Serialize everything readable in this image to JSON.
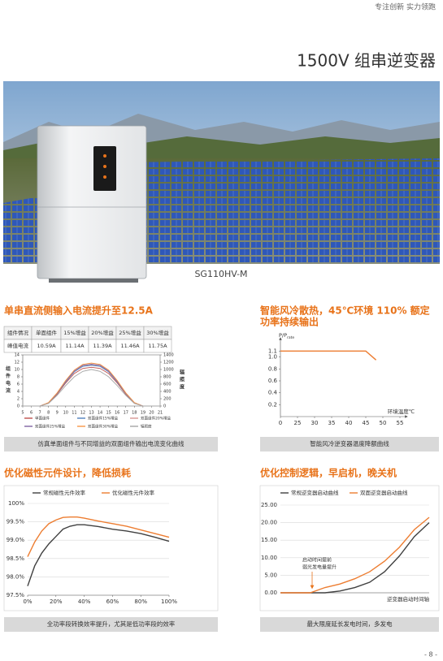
{
  "header": {
    "tagline": "专注创新 实力领跑",
    "title": "1500V 组串逆变器",
    "model": "SG110HV-M"
  },
  "sections": [
    {
      "heading": "单串直流侧输入电流提升至12.5A",
      "table": {
        "rows": [
          [
            "组件情况",
            "单面组件",
            "15%增益",
            "20%增益",
            "25%增益",
            "30%增益"
          ],
          [
            "峰值电流",
            "10.59A",
            "11.14A",
            "11.39A",
            "11.46A",
            "11.75A"
          ]
        ]
      },
      "chart": {
        "type": "line",
        "x": [
          5,
          6,
          7,
          8,
          9,
          10,
          11,
          12,
          13,
          14,
          15,
          16,
          17,
          18,
          19,
          20,
          21
        ],
        "xlim": [
          5,
          21
        ],
        "xticks": [
          5,
          6,
          7,
          8,
          9,
          10,
          11,
          12,
          13,
          14,
          15,
          16,
          17,
          18,
          19,
          20,
          21
        ],
        "ylim": [
          0,
          14
        ],
        "yticks": [
          0,
          2,
          4,
          6,
          8,
          10,
          12,
          14
        ],
        "y2lim": [
          0,
          1400
        ],
        "y2ticks": [
          0,
          200,
          400,
          600,
          800,
          1000,
          1200,
          1400
        ],
        "ylabel": "组件电流",
        "y2label": "辐照度",
        "grid": false,
        "series": [
          {
            "name": "单面组件",
            "color": "#c0504d",
            "values": [
              0,
              0,
              0,
              0.8,
              3.2,
              6.3,
              8.9,
              10.3,
              10.59,
              10.3,
              8.9,
              6.3,
              3.2,
              0.8,
              0,
              0,
              0
            ]
          },
          {
            "name": "双面组件15%增益",
            "color": "#4f81bd",
            "values": [
              0,
              0,
              0,
              0.85,
              3.4,
              6.6,
              9.35,
              10.85,
              11.14,
              10.85,
              9.35,
              6.6,
              3.4,
              0.85,
              0,
              0,
              0
            ]
          },
          {
            "name": "双面组件20%增益",
            "color": "#d99694",
            "values": [
              0,
              0,
              0,
              0.9,
              3.5,
              6.8,
              9.55,
              11.1,
              11.39,
              11.1,
              9.55,
              6.8,
              3.5,
              0.9,
              0,
              0,
              0
            ]
          },
          {
            "name": "双面组件25%增益",
            "color": "#8064a2",
            "values": [
              0,
              0,
              0,
              0.9,
              3.55,
              6.85,
              9.6,
              11.15,
              11.46,
              11.15,
              9.6,
              6.85,
              3.55,
              0.9,
              0,
              0,
              0
            ]
          },
          {
            "name": "双面组件30%增益",
            "color": "#f79646",
            "values": [
              0,
              0,
              0,
              0.95,
              3.6,
              7,
              9.85,
              11.4,
              11.75,
              11.4,
              9.85,
              7,
              3.6,
              0.95,
              0,
              0,
              0
            ]
          },
          {
            "name": "辐照度",
            "color": "#a6a6a6",
            "axis": "y2",
            "values": [
              0,
              0,
              0,
              70,
              290,
              560,
              800,
              950,
              1000,
              950,
              800,
              560,
              290,
              70,
              0,
              0,
              0
            ]
          }
        ]
      },
      "caption": "仿真单面组件与不同增益的双面组件输出电流变化曲线"
    },
    {
      "heading": [
        "智能风冷散热，45℃环境 110% 额定",
        "功率持续输出"
      ],
      "chart": {
        "type": "line",
        "x": [
          0,
          45,
          48
        ],
        "xlim": [
          0,
          55
        ],
        "xticks": [
          0,
          25,
          30,
          35,
          40,
          45,
          50,
          55
        ],
        "ylim": [
          0,
          1.2
        ],
        "yticks": [
          0.2,
          0.4,
          0.6,
          0.8,
          {
            "value": 1,
            "label": "1.0"
          },
          1.1
        ],
        "ylabel": "P/P",
        "ylabel_sub": "rate",
        "xlabel": "环境温度℃",
        "grid": false,
        "series": [
          {
            "color": "#ed7d31",
            "values": [
              1.1,
              1.1,
              0.95
            ]
          }
        ]
      },
      "caption": "智能风冷逆变器温度降额曲线"
    },
    {
      "heading": "优化磁性元件设计，降低损耗",
      "chart": {
        "type": "line",
        "x": [
          0,
          5,
          10,
          15,
          20,
          25,
          30,
          35,
          40,
          50,
          60,
          70,
          80,
          90,
          100
        ],
        "xlim": [
          0,
          100
        ],
        "xticks": [
          {
            "value": 0,
            "label": "0%"
          },
          {
            "value": 20,
            "label": "20%"
          },
          {
            "value": 40,
            "label": "40%"
          },
          {
            "value": 60,
            "label": "60%"
          },
          {
            "value": 80,
            "label": "80%"
          },
          {
            "value": 100,
            "label": "100%"
          }
        ],
        "ylim": [
          97.5,
          100
        ],
        "yticks": [
          {
            "value": 97.5,
            "label": "97.5%"
          },
          {
            "value": 98,
            "label": "98.0%"
          },
          {
            "value": 98.5,
            "label": "98.5%"
          },
          {
            "value": 99,
            "label": "99.0%"
          },
          {
            "value": 99.5,
            "label": "99.5%"
          },
          {
            "value": 100,
            "label": "100%"
          }
        ],
        "grid": true,
        "series": [
          {
            "name": "常规磁性元件效率",
            "color": "#404040",
            "values": [
              97.75,
              98.3,
              98.65,
              98.9,
              99.1,
              99.3,
              99.38,
              99.42,
              99.42,
              99.37,
              99.3,
              99.25,
              99.18,
              99.08,
              98.97
            ]
          },
          {
            "name": "优化磁性元件效率",
            "color": "#ed7d31",
            "values": [
              98.55,
              98.95,
              99.25,
              99.45,
              99.55,
              99.62,
              99.63,
              99.63,
              99.6,
              99.52,
              99.45,
              99.38,
              99.28,
              99.18,
              99.08
            ]
          }
        ]
      },
      "caption": "全功率段转换效率提升，尤其是低功率段的效率"
    },
    {
      "heading": "优化控制逻辑，早启机，晚关机",
      "chart": {
        "type": "line",
        "x": [
          0,
          1,
          2,
          3,
          4,
          5,
          6,
          7,
          8,
          9,
          10
        ],
        "xlim": [
          0,
          10
        ],
        "ylim": [
          0,
          25
        ],
        "yticks": [
          {
            "value": 0,
            "label": "0.00"
          },
          {
            "value": 5,
            "label": "5.00"
          },
          {
            "value": 10,
            "label": "10.00"
          },
          {
            "value": 15,
            "label": "15.00"
          },
          {
            "value": 20,
            "label": "20.00"
          },
          {
            "value": 25,
            "label": "25.00"
          }
        ],
        "xlabel": "逆变器启动时间轴",
        "grid": true,
        "annotations": [
          "启动时间提前",
          "弱光发电量提升"
        ],
        "series": [
          {
            "name": "常规逆变器启动曲线",
            "color": "#404040",
            "values": [
              0,
              0,
              0,
              0,
              0.5,
              1.5,
              3,
              6,
              10.5,
              16,
              20
            ]
          },
          {
            "name": "双面逆变器启动曲线",
            "color": "#ed7d31",
            "values": [
              0,
              0,
              0,
              1.5,
              2.5,
              4,
              6,
              9,
              13,
              18,
              21.5
            ]
          }
        ]
      },
      "caption": "最大限度延长发电时间，多发电"
    }
  ],
  "page_number": "- 8 -"
}
